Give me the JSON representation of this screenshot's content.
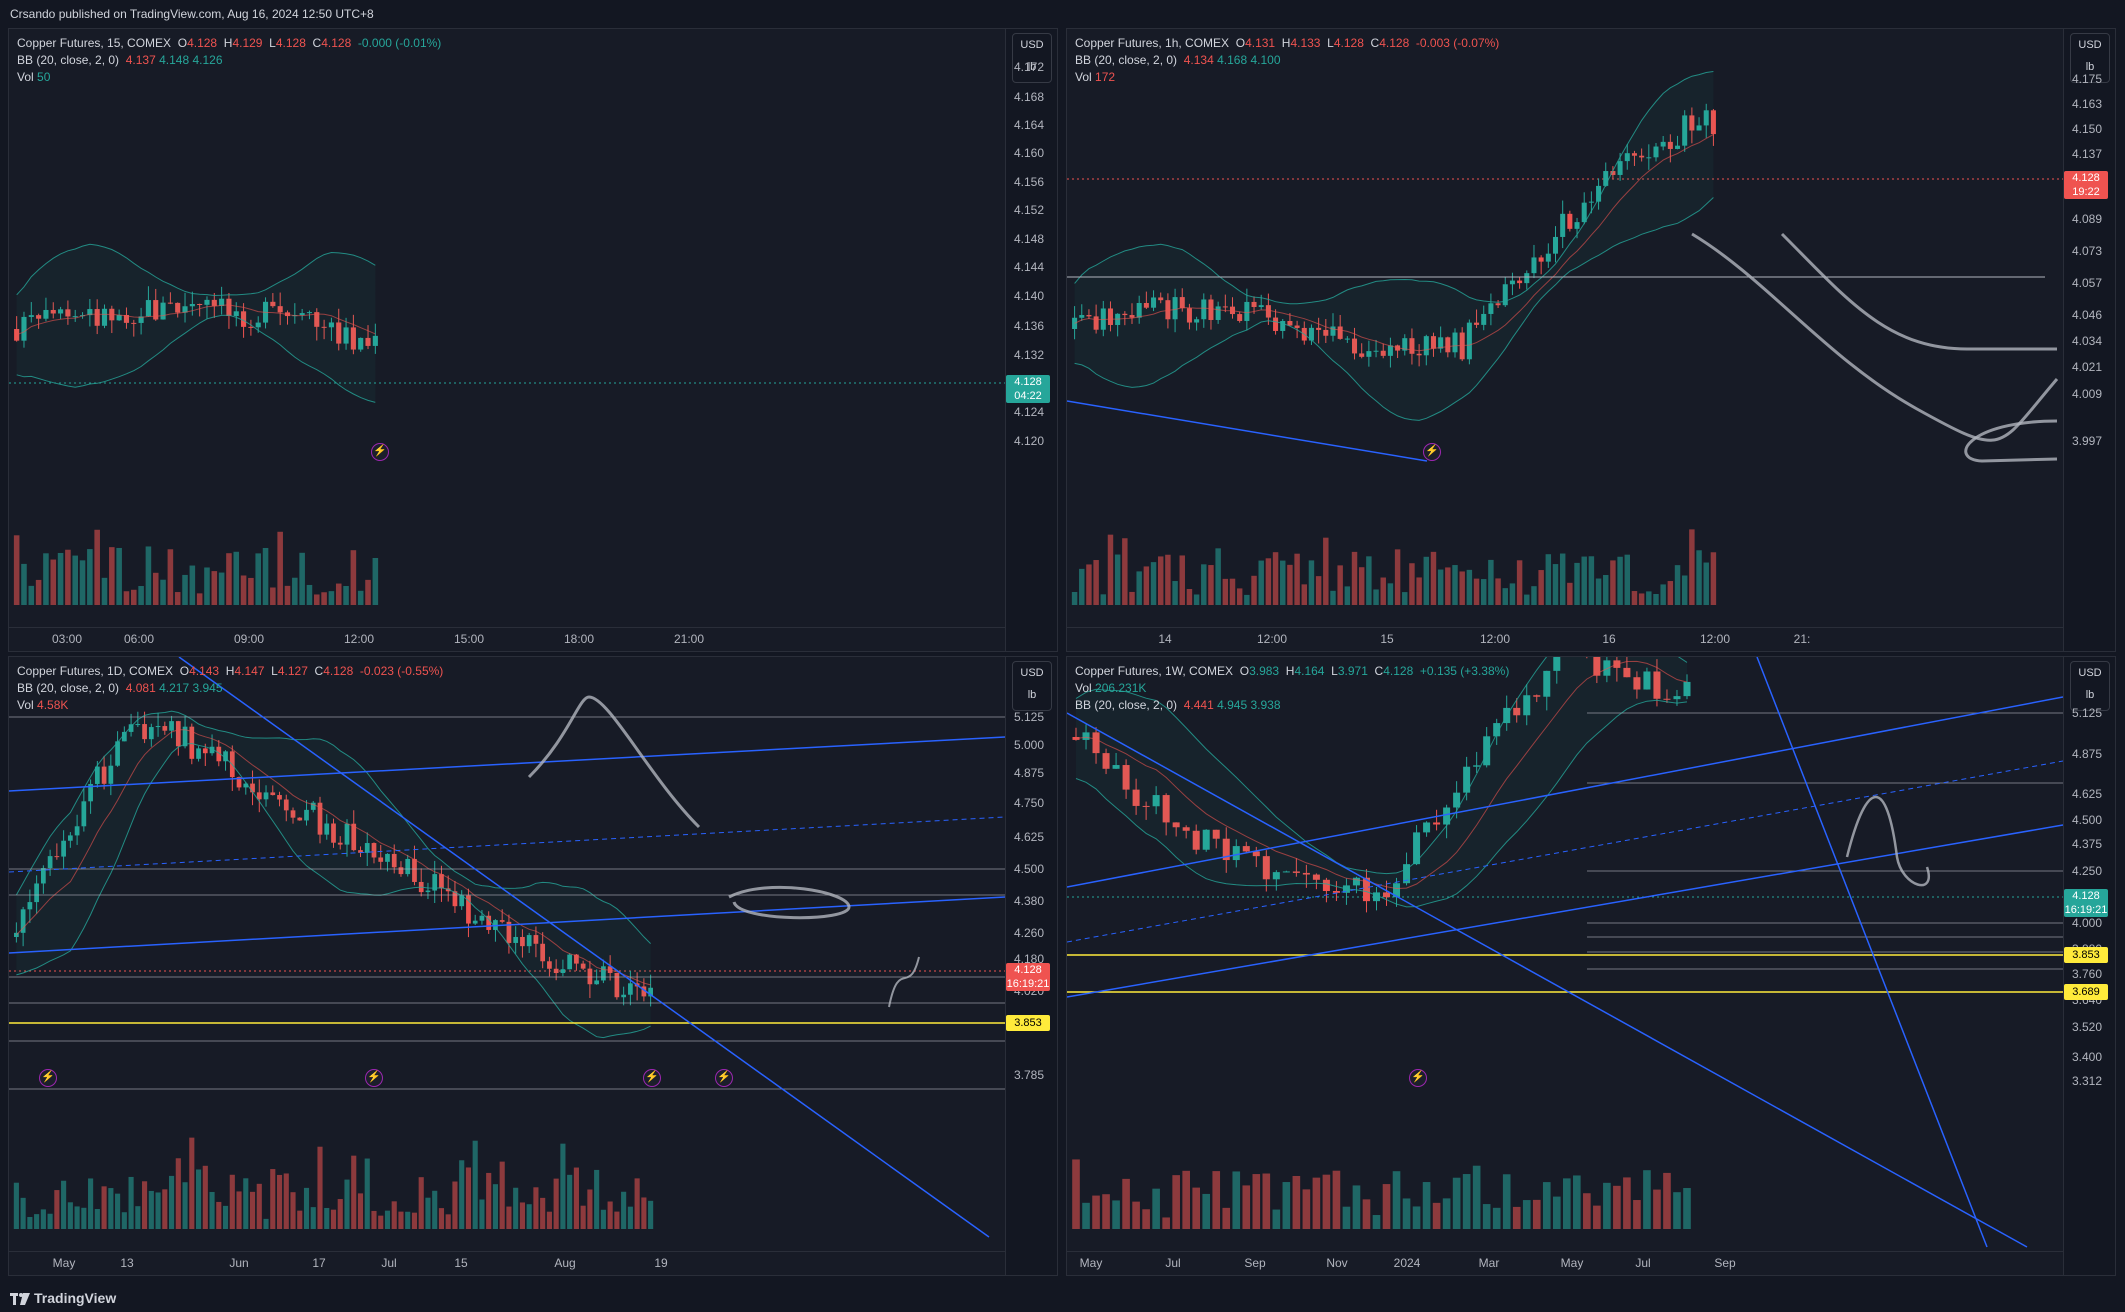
{
  "header": {
    "text": "Crsando published on TradingView.com, Aug 16, 2024 12:50 UTC+8"
  },
  "footer": {
    "brand": "TradingView"
  },
  "panels": [
    {
      "id": "p15",
      "legend": {
        "title": "Copper Futures, 15, COMEX",
        "o_label": "O",
        "o": "4.128",
        "h_label": "H",
        "h": "4.129",
        "l_label": "L",
        "l": "4.128",
        "c_label": "C",
        "c": "4.128",
        "chg": "-0.000 (-0.01%)",
        "bb_label": "BB (20, close, 2, 0)",
        "bb1": "4.137",
        "bb2": "4.148",
        "bb3": "4.126",
        "vol_label": "Vol",
        "vol": "50"
      },
      "currency": "USD",
      "unit": "lb",
      "price_ticks": [
        "4.172",
        "4.168",
        "4.164",
        "4.160",
        "4.156",
        "4.152",
        "4.148",
        "4.144",
        "4.140",
        "4.136",
        "4.132",
        "4.128",
        "4.124",
        "4.120"
      ],
      "last_price": "4.128",
      "countdown": "04:22",
      "time_ticks": [
        "03:00",
        "06:00",
        "09:00",
        "12:00",
        "15:00",
        "18:00",
        "21:00"
      ]
    },
    {
      "id": "p1h",
      "legend": {
        "title": "Copper Futures, 1h, COMEX",
        "o_label": "O",
        "o": "4.131",
        "h_label": "H",
        "h": "4.133",
        "l_label": "L",
        "l": "4.128",
        "c_label": "C",
        "c": "4.128",
        "chg": "-0.003 (-0.07%)",
        "bb_label": "BB (20, close, 2, 0)",
        "bb1": "4.134",
        "bb2": "4.168",
        "bb3": "4.100",
        "vol_label": "Vol",
        "vol": "172"
      },
      "currency": "USD",
      "unit": "lb",
      "price_ticks": [
        "4.175",
        "4.163",
        "4.150",
        "4.137",
        "4.105",
        "4.089",
        "4.073",
        "4.057",
        "4.046",
        "4.034",
        "4.021",
        "4.009",
        "3.997"
      ],
      "last_price": "4.128",
      "countdown": "19:22",
      "time_ticks": [
        "14",
        "12:00",
        "15",
        "12:00",
        "16",
        "12:00",
        "21:"
      ]
    },
    {
      "id": "p1d",
      "legend": {
        "title": "Copper Futures, 1D, COMEX",
        "o_label": "O",
        "o": "4.143",
        "h_label": "H",
        "h": "4.147",
        "l_label": "L",
        "l": "4.127",
        "c_label": "C",
        "c": "4.128",
        "chg": "-0.023 (-0.55%)",
        "bb_label": "BB (20, close, 2, 0)",
        "bb1": "4.081",
        "bb2": "4.217",
        "bb3": "3.945",
        "vol_label": "Vol",
        "vol": "4.58K"
      },
      "currency": "USD",
      "unit": "lb",
      "price_ticks": [
        "5.125",
        "5.000",
        "4.875",
        "4.750",
        "4.625",
        "4.500",
        "4.380",
        "4.260",
        "4.180",
        "4.020",
        "3.940",
        "3.785"
      ],
      "last_price": "4.128",
      "countdown": "16:19:21",
      "highlight": "3.853",
      "time_ticks": [
        "May",
        "13",
        "Jun",
        "17",
        "Jul",
        "15",
        "Aug",
        "19"
      ]
    },
    {
      "id": "p1w",
      "legend": {
        "title": "Copper Futures, 1W, COMEX",
        "o_label": "O",
        "o": "3.983",
        "h_label": "H",
        "h": "4.164",
        "l_label": "L",
        "l": "3.971",
        "c_label": "C",
        "c": "4.128",
        "chg": "+0.135 (+3.38%)",
        "vol_label": "Vol",
        "vol": "206.231K",
        "bb_label": "BB (20, close, 2, 0)",
        "bb1": "4.441",
        "bb2": "4.945",
        "bb3": "3.938"
      },
      "currency": "USD",
      "unit": "lb",
      "price_ticks": [
        "5.125",
        "4.875",
        "4.625",
        "4.500",
        "4.375",
        "4.250",
        "4.000",
        "3.880",
        "3.760",
        "3.640",
        "3.520",
        "3.400",
        "3.312"
      ],
      "last_price": "4.128",
      "countdown": "16:19:21",
      "highlight1": "3.853",
      "highlight2": "3.689",
      "time_ticks": [
        "May",
        "Jul",
        "Sep",
        "Nov",
        "2024",
        "Mar",
        "May",
        "Jul",
        "Sep"
      ]
    }
  ]
}
